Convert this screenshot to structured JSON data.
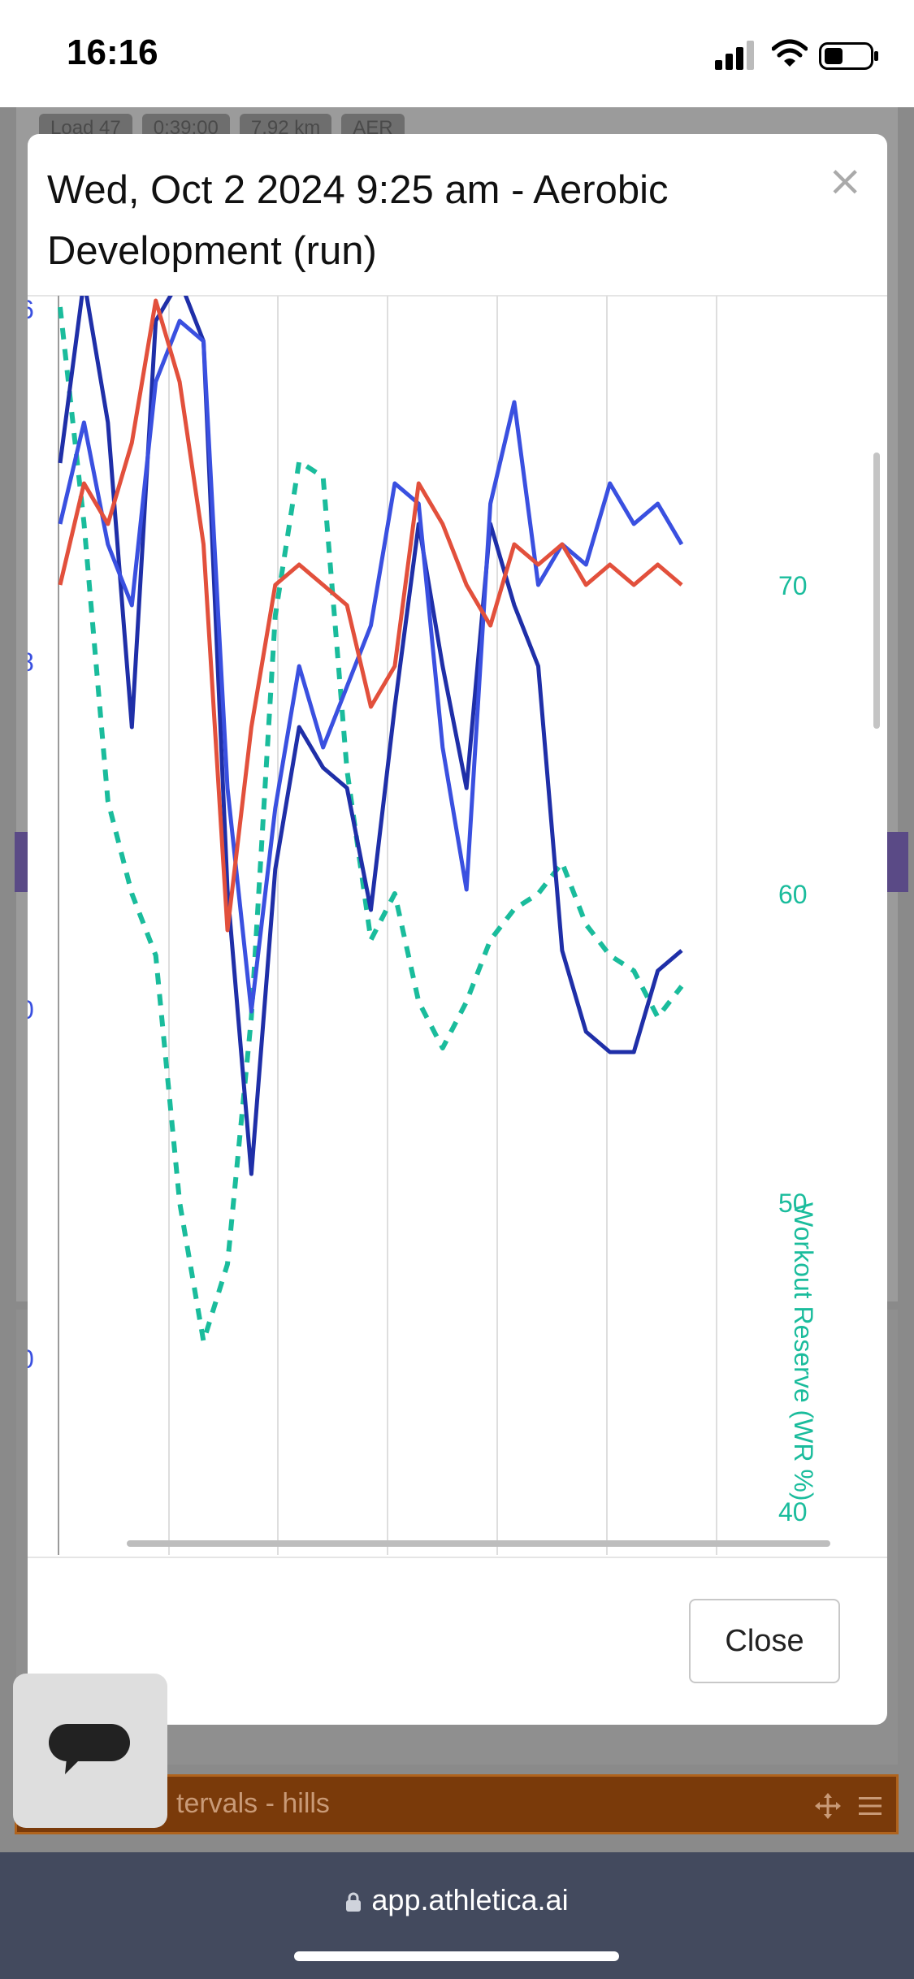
{
  "status_bar": {
    "time": "16:16"
  },
  "background": {
    "tags": [
      "Load 47",
      "0:39:00",
      "7.92 km",
      "AER"
    ],
    "orange_row_label": "tervals - hills"
  },
  "modal": {
    "title": "Wed, Oct 2 2024 9:25 am - Aerobic Development (run)",
    "close_x": "×",
    "close_button": "Close"
  },
  "chart_data": {
    "type": "line",
    "title": "",
    "y2_axis": {
      "label": "Workout Reserve (WR %)",
      "ticks": [
        "70",
        "60",
        "50",
        "40"
      ],
      "range": [
        40,
        79
      ]
    },
    "left_axis_partial_ticks": [
      "6",
      "8",
      "0",
      "0"
    ],
    "colors": {
      "accent": "#1abc9c",
      "dark_blue": "#1f2fa8",
      "blue": "#3a50e0",
      "red": "#e2503c"
    },
    "series": [
      {
        "name": "",
        "color": "#1abc9c",
        "style": "dashed",
        "axis": "right",
        "x": [
          0,
          1,
          2,
          3,
          4,
          5,
          6,
          7,
          8,
          9,
          10,
          11,
          12,
          13,
          14,
          15,
          16,
          17,
          18,
          19,
          20,
          21,
          22,
          23,
          24,
          25,
          26
        ],
        "values": [
          79,
          72,
          63,
          60,
          58,
          50,
          45.5,
          48,
          56,
          69,
          74,
          73.5,
          64,
          58.5,
          60,
          56.5,
          55,
          56.5,
          58.5,
          59.5,
          60,
          61,
          59,
          58,
          57.5,
          56,
          57
        ]
      },
      {
        "name": "",
        "color": "#1f2fa8",
        "style": "solid",
        "axis": "left",
        "x": [
          0,
          1,
          2,
          3,
          4,
          5,
          6,
          7,
          8,
          9,
          10,
          11,
          12,
          13,
          14,
          15,
          16,
          17,
          18,
          19,
          20,
          21,
          22,
          23,
          24,
          25,
          26
        ],
        "values": [
          2.6,
          3.5,
          2.8,
          1.3,
          3.3,
          3.5,
          3.2,
          0.5,
          -0.9,
          0.6,
          1.3,
          1.1,
          1.0,
          0.4,
          1.4,
          2.3,
          1.6,
          1.0,
          2.3,
          1.9,
          1.6,
          0.2,
          -0.2,
          -0.3,
          -0.3,
          0.1,
          0.2
        ]
      },
      {
        "name": "",
        "color": "#3a50e0",
        "style": "solid",
        "axis": "left",
        "x": [
          0,
          1,
          2,
          3,
          4,
          5,
          6,
          7,
          8,
          9,
          10,
          11,
          12,
          13,
          14,
          15,
          16,
          17,
          18,
          19,
          20,
          21,
          22,
          23,
          24,
          25,
          26
        ],
        "values": [
          2.3,
          2.8,
          2.2,
          1.9,
          3.0,
          3.3,
          3.2,
          1.0,
          -0.1,
          0.9,
          1.6,
          1.2,
          1.5,
          1.8,
          2.5,
          2.4,
          1.2,
          0.5,
          2.4,
          2.9,
          2.0,
          2.2,
          2.1,
          2.5,
          2.3,
          2.4,
          2.2
        ]
      },
      {
        "name": "",
        "color": "#e2503c",
        "style": "solid",
        "axis": "left",
        "x": [
          0,
          1,
          2,
          3,
          4,
          5,
          6,
          7,
          8,
          9,
          10,
          11,
          12,
          13,
          14,
          15,
          16,
          17,
          18,
          19,
          20,
          21,
          22,
          23,
          24,
          25,
          26
        ],
        "values": [
          2.0,
          2.5,
          2.3,
          2.7,
          3.4,
          3.0,
          2.2,
          0.3,
          1.3,
          2.0,
          2.1,
          2.0,
          1.9,
          1.4,
          1.6,
          2.5,
          2.3,
          2.0,
          1.8,
          2.2,
          2.1,
          2.2,
          2.0,
          2.1,
          2.0,
          2.1,
          2.0
        ]
      }
    ],
    "grid": true,
    "horizontal_scrollbar": true
  }
}
